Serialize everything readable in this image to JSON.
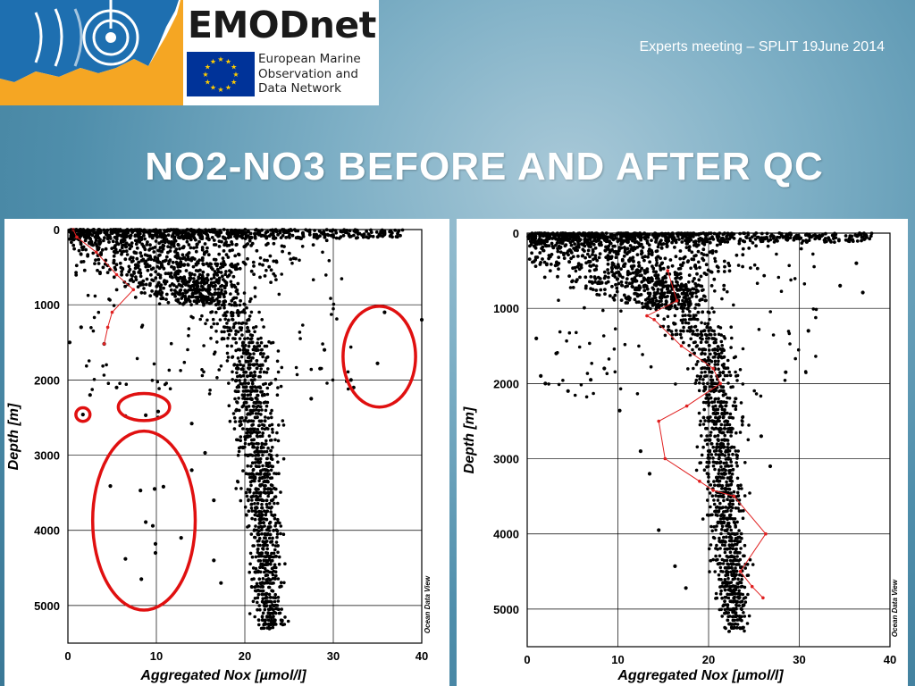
{
  "logo": {
    "name": "EMODnet",
    "subtitle_lines": [
      "European Marine",
      "Observation and",
      "Data Network"
    ]
  },
  "header": {
    "meeting": "Experts meeting – SPLIT 19June 2014",
    "title": "NO2-NO3 BEFORE AND AFTER QC"
  },
  "colors": {
    "logo_blue": "#1e6fb0",
    "logo_orange": "#f5a623",
    "eu_blue": "#003399",
    "eu_star": "#ffcc00",
    "qc_circle": "#e01010",
    "profile_line": "#e02020"
  },
  "chart_data": [
    {
      "type": "scatter",
      "panel": "before QC",
      "xlabel": "Aggregated Nox [µmol/l]",
      "ylabel": "Depth [m]",
      "xlim": [
        0,
        40
      ],
      "ylim": [
        5500,
        0
      ],
      "y_reversed": true,
      "grid": true,
      "x_ticks": [
        0,
        10,
        20,
        30,
        40
      ],
      "y_ticks": [
        0,
        1000,
        2000,
        3000,
        4000,
        5000
      ],
      "watermark": "Ocean Data View",
      "outliers": [
        {
          "x": 1.7,
          "y": 2460
        },
        {
          "x": 4.1,
          "y": 1520
        },
        {
          "x": 4.8,
          "y": 3410
        },
        {
          "x": 6.5,
          "y": 4380
        },
        {
          "x": 8.2,
          "y": 3470
        },
        {
          "x": 8.3,
          "y": 4650
        },
        {
          "x": 8.8,
          "y": 3890
        },
        {
          "x": 9.6,
          "y": 3940
        },
        {
          "x": 9.8,
          "y": 3450
        },
        {
          "x": 10.8,
          "y": 3420
        },
        {
          "x": 9.9,
          "y": 4300
        },
        {
          "x": 9.9,
          "y": 4180
        },
        {
          "x": 12.8,
          "y": 4100
        },
        {
          "x": 16.5,
          "y": 4400
        },
        {
          "x": 6.5,
          "y": 2480
        },
        {
          "x": 8.8,
          "y": 2470
        },
        {
          "x": 10.2,
          "y": 2420
        },
        {
          "x": 10.2,
          "y": 2500
        },
        {
          "x": 35.0,
          "y": 1780
        },
        {
          "x": 35.8,
          "y": 1100
        },
        {
          "x": 32.0,
          "y": 2000
        },
        {
          "x": 32.3,
          "y": 2100
        },
        {
          "x": 1.5,
          "y": 1300
        },
        {
          "x": 0.2,
          "y": 1500
        },
        {
          "x": 2.5,
          "y": 2200
        },
        {
          "x": 5.5,
          "y": 2100
        },
        {
          "x": 14.0,
          "y": 2580
        },
        {
          "x": 15.5,
          "y": 2970
        },
        {
          "x": 17.3,
          "y": 4700
        },
        {
          "x": 29.0,
          "y": 1600
        },
        {
          "x": 27.5,
          "y": 2250
        },
        {
          "x": 28.5,
          "y": 1850
        },
        {
          "x": 40.0,
          "y": 1200
        },
        {
          "x": 14.0,
          "y": 3200
        },
        {
          "x": 16.5,
          "y": 3600
        }
      ],
      "red_profile": [
        {
          "x": 0.6,
          "y": 0
        },
        {
          "x": 1.0,
          "y": 100
        },
        {
          "x": 3.2,
          "y": 300
        },
        {
          "x": 5.5,
          "y": 600
        },
        {
          "x": 7.4,
          "y": 800
        },
        {
          "x": 5.0,
          "y": 1100
        },
        {
          "x": 4.5,
          "y": 1300
        },
        {
          "x": 4.1,
          "y": 1520
        }
      ],
      "annotations": [
        {
          "shape": "ellipse",
          "cx": 1.7,
          "cy": 2460,
          "rx": 0.8,
          "ry": 90
        },
        {
          "shape": "ellipse",
          "cx": 8.6,
          "cy": 2360,
          "rx": 2.9,
          "ry": 180
        },
        {
          "shape": "ellipse",
          "cx": 8.6,
          "cy": 3870,
          "rx": 5.8,
          "ry": 1190
        },
        {
          "shape": "ellipse",
          "cx": 35.2,
          "cy": 1690,
          "rx": 4.1,
          "ry": 670
        }
      ]
    },
    {
      "type": "scatter",
      "panel": "after QC",
      "xlabel": "Aggregated Nox [µmol/l]",
      "ylabel": "Depth [m]",
      "xlim": [
        0,
        40
      ],
      "ylim": [
        5500,
        0
      ],
      "y_reversed": true,
      "grid": true,
      "x_ticks": [
        0,
        10,
        20,
        30,
        40
      ],
      "y_ticks": [
        0,
        1000,
        2000,
        3000,
        4000,
        5000
      ],
      "watermark": "Ocean Data View",
      "outliers": [
        {
          "x": 1.5,
          "y": 1900
        },
        {
          "x": 2.0,
          "y": 2000
        },
        {
          "x": 4.5,
          "y": 2100
        },
        {
          "x": 10.2,
          "y": 2360
        },
        {
          "x": 7.0,
          "y": 1950
        },
        {
          "x": 8.5,
          "y": 1800
        },
        {
          "x": 16.3,
          "y": 4430
        },
        {
          "x": 17.5,
          "y": 4720
        },
        {
          "x": 14.5,
          "y": 3950
        },
        {
          "x": 28.5,
          "y": 1850
        },
        {
          "x": 31.0,
          "y": 1300
        },
        {
          "x": 36.3,
          "y": 400
        },
        {
          "x": 37.0,
          "y": 790
        },
        {
          "x": 34.5,
          "y": 700
        },
        {
          "x": 25.8,
          "y": 2700
        },
        {
          "x": 26.8,
          "y": 3100
        },
        {
          "x": 12.5,
          "y": 2900
        },
        {
          "x": 13.5,
          "y": 3200
        },
        {
          "x": 1.0,
          "y": 1400
        },
        {
          "x": 3.2,
          "y": 1600
        }
      ],
      "red_profile": [
        {
          "x": 15.5,
          "y": 500
        },
        {
          "x": 16.5,
          "y": 900
        },
        {
          "x": 13.2,
          "y": 1100
        },
        {
          "x": 14.0,
          "y": 1150
        },
        {
          "x": 17.0,
          "y": 1500
        },
        {
          "x": 20.5,
          "y": 1800
        },
        {
          "x": 21.3,
          "y": 2000
        },
        {
          "x": 17.6,
          "y": 2300
        },
        {
          "x": 14.5,
          "y": 2500
        },
        {
          "x": 15.2,
          "y": 3000
        },
        {
          "x": 19.0,
          "y": 3300
        },
        {
          "x": 20.5,
          "y": 3420
        },
        {
          "x": 22.8,
          "y": 3500
        },
        {
          "x": 26.3,
          "y": 4000
        },
        {
          "x": 23.5,
          "y": 4500
        },
        {
          "x": 24.8,
          "y": 4700
        },
        {
          "x": 26.0,
          "y": 4850
        }
      ]
    }
  ]
}
